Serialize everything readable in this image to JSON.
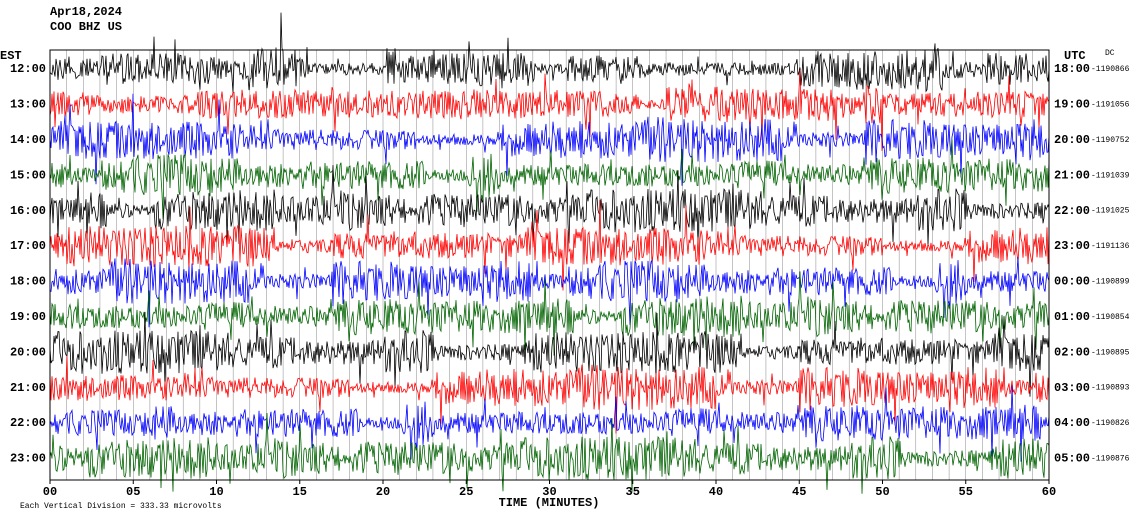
{
  "header": {
    "date": "Apr18,2024",
    "station": "COO BHZ US"
  },
  "left_label": "EST",
  "right_label": "UTC",
  "dc": "DC",
  "trace_colors": [
    "#000000",
    "#ff0000",
    "#0000ff",
    "#006400"
  ],
  "rows": [
    {
      "est": "12:00",
      "utc": "18:00",
      "offset": "-1190866"
    },
    {
      "est": "13:00",
      "utc": "19:00",
      "offset": "-1191056"
    },
    {
      "est": "14:00",
      "utc": "20:00",
      "offset": "-1190752"
    },
    {
      "est": "15:00",
      "utc": "21:00",
      "offset": "-1191039"
    },
    {
      "est": "16:00",
      "utc": "22:00",
      "offset": "-1191025"
    },
    {
      "est": "17:00",
      "utc": "23:00",
      "offset": "-1191136"
    },
    {
      "est": "18:00",
      "utc": "00:00",
      "offset": "-1190899"
    },
    {
      "est": "19:00",
      "utc": "01:00",
      "offset": "-1190854"
    },
    {
      "est": "20:00",
      "utc": "02:00",
      "offset": "-1190895"
    },
    {
      "est": "21:00",
      "utc": "03:00",
      "offset": "-1190893"
    },
    {
      "est": "22:00",
      "utc": "04:00",
      "offset": "-1190826"
    },
    {
      "est": "23:00",
      "utc": "05:00",
      "offset": "-1190876"
    }
  ],
  "x_axis": {
    "ticks": [
      "00",
      "05",
      "10",
      "15",
      "20",
      "25",
      "30",
      "35",
      "40",
      "45",
      "50",
      "55",
      "60"
    ],
    "title": "TIME (MINUTES)"
  },
  "footer": "Each Vertical Division = 333.33 microvolts"
}
